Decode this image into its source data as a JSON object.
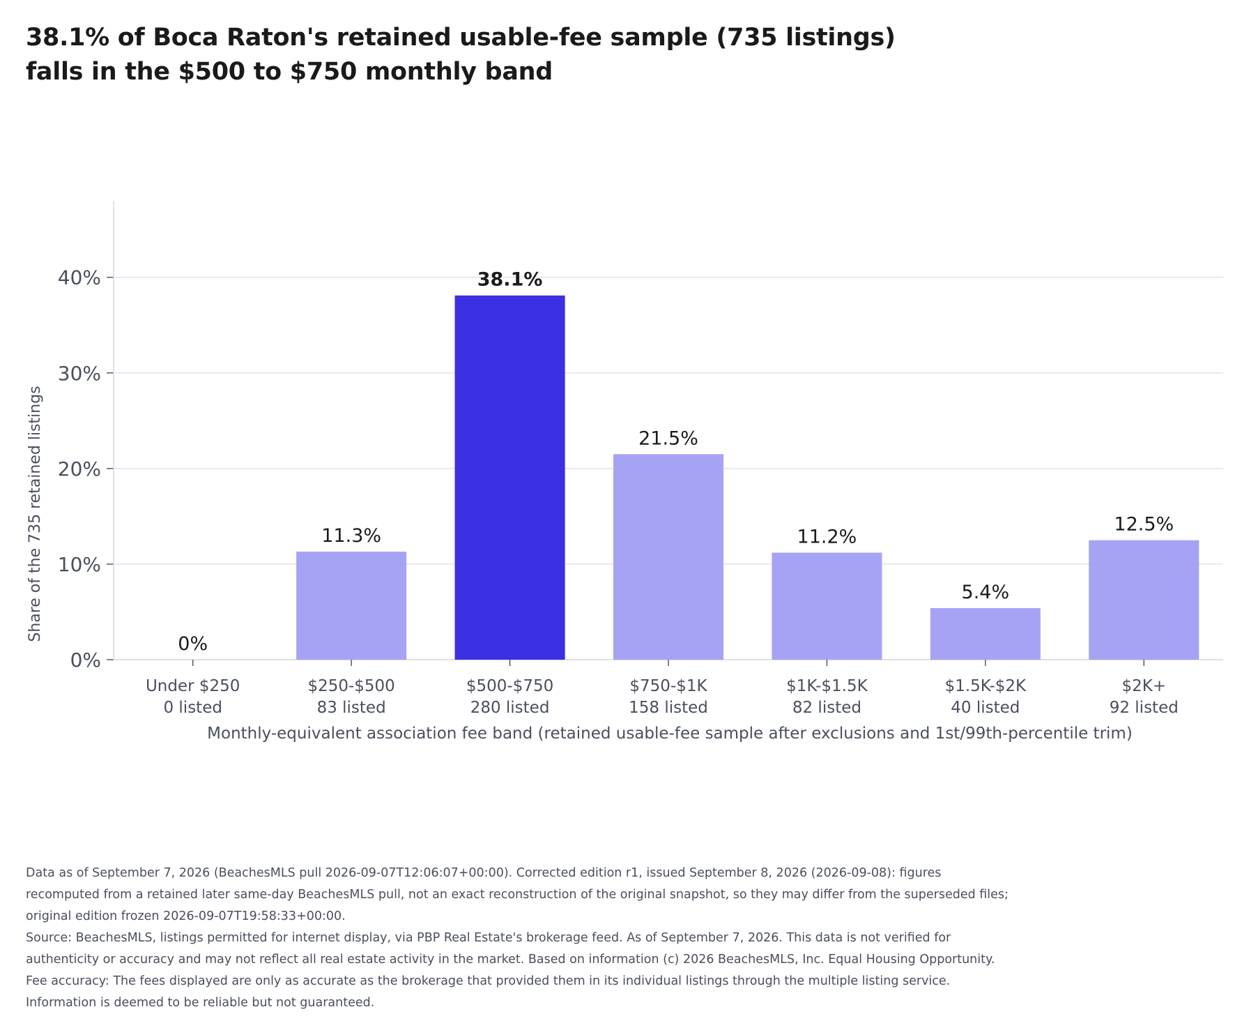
{
  "title_lines": [
    "38.1% of Boca Raton's retained usable-fee sample (735 listings)",
    "falls in the $500 to $750 monthly band"
  ],
  "colors": {
    "highlight": "#3b30e2",
    "bar": "#a7a3f4",
    "grid": "#e2e2ee",
    "axis": "#d5d5e0",
    "text": "#1a1a1a",
    "muted": "#4a4f5c"
  },
  "chart_data": {
    "type": "bar",
    "categories": [
      "Under $250",
      "$250-$500",
      "$500-$750",
      "$750-$1K",
      "$1K-$1.5K",
      "$1.5K-$2K",
      "$2K+"
    ],
    "counts": [
      "0 listed",
      "83 listed",
      "280 listed",
      "158 listed",
      "82 listed",
      "40 listed",
      "92 listed"
    ],
    "values": [
      0,
      11.3,
      38.1,
      21.5,
      11.2,
      5.4,
      12.5
    ],
    "value_labels": [
      "0%",
      "11.3%",
      "38.1%",
      "21.5%",
      "11.2%",
      "5.4%",
      "12.5%"
    ],
    "highlight_index": 2,
    "xlabel": "Monthly-equivalent association fee band (retained usable-fee sample after exclusions and 1st/99th-percentile trim)",
    "ylabel": "Share of the 735 retained listings",
    "yticks": [
      0,
      10,
      20,
      30,
      40
    ],
    "ytick_labels": [
      "0%",
      "10%",
      "20%",
      "30%",
      "40%"
    ],
    "ylim": [
      0,
      48
    ],
    "grid": true,
    "legend": "none"
  },
  "footer": {
    "edition_note": "Data as of September 7, 2026 (BeachesMLS pull 2026-09-07T12:06:07+00:00). Corrected edition r1, issued September 8, 2026 (2026-09-08): figures recomputed from a retained later same-day BeachesMLS pull, not an exact reconstruction of the original snapshot, so they may differ from the superseded files; original edition frozen 2026-09-07T19:58:33+00:00.",
    "source_note": "Source: BeachesMLS, listings permitted for internet display, via PBP Real Estate's brokerage feed. As of September 7, 2026. This data is not verified for authenticity or accuracy and may not reflect all real estate activity in the market. Based on information (c) 2026 BeachesMLS, Inc. Equal Housing Opportunity. Fee accuracy: The fees displayed are only as accurate as the brokerage that provided them in its individual listings through the multiple listing service. Information is deemed to be reliable but not guaranteed."
  }
}
